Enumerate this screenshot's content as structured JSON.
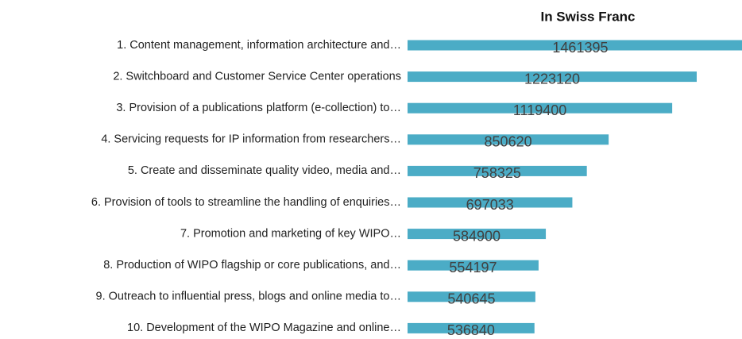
{
  "chart_data": {
    "type": "barh",
    "subtitle": "In Swiss Franc",
    "color": "#4bacc6",
    "categories": [
      "1. Content management, information architecture and…",
      "2. Switchboard and Customer Service Center operations",
      "3. Provision of a publications platform (e-collection) to…",
      "4. Servicing requests for IP information from researchers…",
      "5. Create and disseminate quality video, media and…",
      "6. Provision of tools to streamline the handling of enquiries…",
      "7. Promotion and marketing of key WIPO…",
      "8. Production of WIPO flagship or core publications, and…",
      "9. Outreach to influential press, blogs and online media to…",
      "10. Development of the WIPO Magazine and online…"
    ],
    "values": [
      1461395,
      1223120,
      1119400,
      850620,
      758325,
      697033,
      584900,
      554197,
      540645,
      536840
    ]
  }
}
